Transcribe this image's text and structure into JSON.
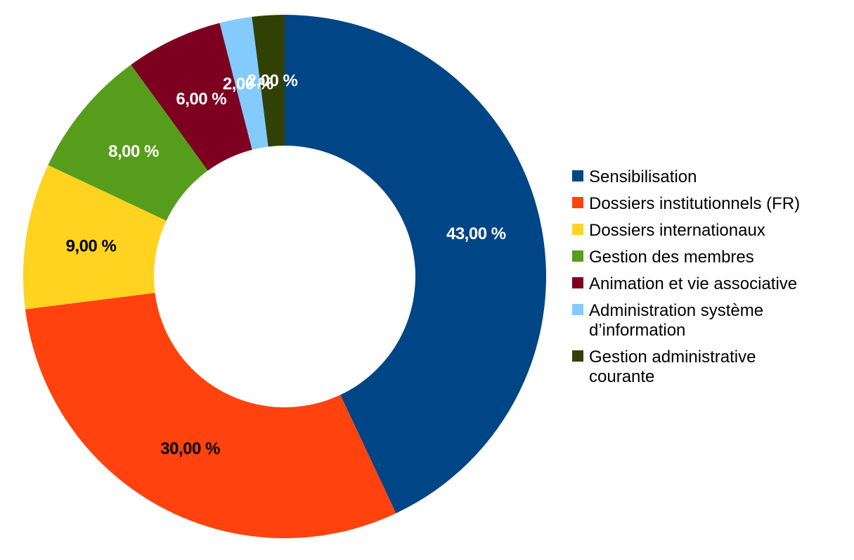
{
  "chart_data": {
    "type": "pie",
    "variant": "donut",
    "legend_position": "right",
    "series": [
      {
        "name": "Sensibilisation",
        "value": 43,
        "label": "43,00 %",
        "color": "#004586",
        "label_color": "#ffffff"
      },
      {
        "name": "Dossiers institutionnels (FR)",
        "value": 30,
        "label": "30,00 %",
        "color": "#ff420e",
        "label_color": "#000000"
      },
      {
        "name": "Dossiers internationaux",
        "value": 9,
        "label": "9,00 %",
        "color": "#ffd320",
        "label_color": "#000000"
      },
      {
        "name": "Gestion des membres",
        "value": 8,
        "label": "8,00 %",
        "color": "#579d1c",
        "label_color": "#ffffff"
      },
      {
        "name": "Animation et vie associative",
        "value": 6,
        "label": "6,00 %",
        "color": "#7e0021",
        "label_color": "#ffffff"
      },
      {
        "name": "Administration système d’information",
        "legend_lines": [
          "Administration système",
          "d’information"
        ],
        "value": 2,
        "label": "2,00 %",
        "color": "#83caff",
        "label_color": "#ffffff"
      },
      {
        "name": "Gestion administrative courante",
        "legend_lines": [
          "Gestion administrative",
          "courante"
        ],
        "value": 2,
        "label": "2,00 %",
        "color": "#314004",
        "label_color": "#ffffff"
      }
    ]
  }
}
